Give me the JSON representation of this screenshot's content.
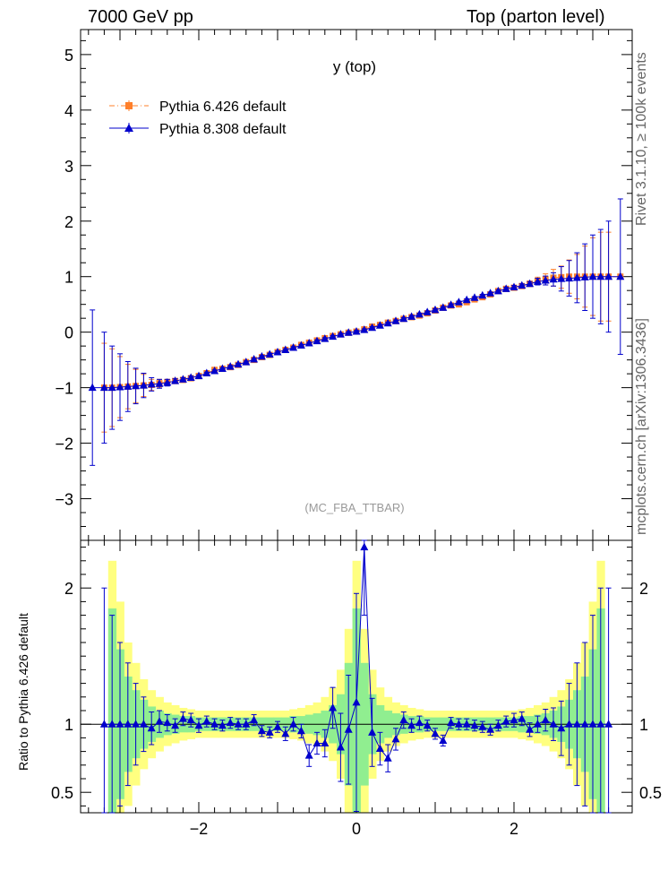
{
  "header": {
    "left": "7000 GeV pp",
    "right": "Top (parton level)"
  },
  "side_labels": {
    "rivet": "Rivet 3.1.10, ≥ 100k events",
    "mcplots": "mcplots.cern.ch [arXiv:1306.3436]"
  },
  "ratio_axis_label": "Ratio to Pythia 6.426 default",
  "colors": {
    "pythia6": "#ff7f2a",
    "pythia8": "#0000cc",
    "band_inner": "#90ee90",
    "band_outer": "#ffff80"
  },
  "chart_data": [
    {
      "type": "scatter",
      "title": "y (top)",
      "watermark": "(MC_FBA_TTBAR)",
      "xlim": [
        -3.5,
        3.5
      ],
      "ylim": [
        -3.75,
        5.45
      ],
      "yticks": [
        -3,
        -2,
        -1,
        0,
        1,
        2,
        3,
        4,
        5
      ],
      "ytick_labels": [
        "−3",
        "−2",
        "−1",
        "0",
        "1",
        "2",
        "3",
        "4",
        "5"
      ],
      "legend": [
        "Pythia 6.426 default",
        "Pythia 8.308 default"
      ],
      "series": [
        {
          "name": "Pythia 6.426 default",
          "x": [
            -3.2,
            -3.1,
            -3.0,
            -2.9,
            -2.8,
            -2.7,
            -2.6,
            -2.5,
            -2.4,
            -2.3,
            -2.2,
            -2.1,
            -2.0,
            -1.9,
            -1.8,
            -1.7,
            -1.6,
            -1.5,
            -1.4,
            -1.3,
            -1.2,
            -1.1,
            -1.0,
            -0.9,
            -0.8,
            -0.7,
            -0.6,
            -0.5,
            -0.4,
            -0.3,
            -0.2,
            -0.1,
            0.0,
            0.1,
            0.2,
            0.3,
            0.4,
            0.5,
            0.6,
            0.7,
            0.8,
            0.9,
            1.0,
            1.1,
            1.2,
            1.3,
            1.4,
            1.5,
            1.6,
            1.7,
            1.8,
            1.9,
            2.0,
            2.1,
            2.2,
            2.3,
            2.4,
            2.5,
            2.6,
            2.7,
            2.8,
            2.9,
            3.0,
            3.1,
            3.2,
            3.35
          ],
          "y": [
            -1.0,
            -1.0,
            -0.99,
            -0.98,
            -0.97,
            -0.96,
            -0.95,
            -0.92,
            -0.9,
            -0.88,
            -0.86,
            -0.83,
            -0.79,
            -0.74,
            -0.68,
            -0.66,
            -0.63,
            -0.59,
            -0.54,
            -0.5,
            -0.45,
            -0.41,
            -0.36,
            -0.32,
            -0.28,
            -0.23,
            -0.19,
            -0.15,
            -0.11,
            -0.07,
            -0.04,
            -0.01,
            0.01,
            0.05,
            0.1,
            0.13,
            0.17,
            0.2,
            0.24,
            0.27,
            0.3,
            0.34,
            0.39,
            0.44,
            0.48,
            0.5,
            0.54,
            0.59,
            0.63,
            0.68,
            0.74,
            0.78,
            0.8,
            0.83,
            0.87,
            0.92,
            0.95,
            0.98,
            0.99,
            1.0,
            1.0,
            1.0,
            1.0,
            1.0,
            1.0,
            1.0
          ],
          "err": [
            0.8,
            0.7,
            0.55,
            0.4,
            0.3,
            0.2,
            0.1,
            0.07,
            0.05,
            0.04,
            0.03,
            0.03,
            0.02,
            0.02,
            0.02,
            0.02,
            0.02,
            0.02,
            0.02,
            0.02,
            0.02,
            0.02,
            0.02,
            0.02,
            0.02,
            0.02,
            0.02,
            0.02,
            0.02,
            0.02,
            0.02,
            0.02,
            0.02,
            0.02,
            0.02,
            0.02,
            0.02,
            0.02,
            0.02,
            0.02,
            0.02,
            0.02,
            0.02,
            0.02,
            0.02,
            0.02,
            0.02,
            0.02,
            0.02,
            0.02,
            0.03,
            0.03,
            0.03,
            0.04,
            0.05,
            0.07,
            0.1,
            0.15,
            0.2,
            0.3,
            0.4,
            0.55,
            0.7,
            0.8,
            0.8,
            0.0
          ]
        },
        {
          "name": "Pythia 8.308 default",
          "x": [
            -3.35,
            -3.2,
            -3.1,
            -3.0,
            -2.9,
            -2.8,
            -2.7,
            -2.6,
            -2.5,
            -2.4,
            -2.3,
            -2.2,
            -2.1,
            -2.0,
            -1.9,
            -1.8,
            -1.7,
            -1.6,
            -1.5,
            -1.4,
            -1.3,
            -1.2,
            -1.1,
            -1.0,
            -0.9,
            -0.8,
            -0.7,
            -0.6,
            -0.5,
            -0.4,
            -0.3,
            -0.2,
            -0.1,
            0.0,
            0.1,
            0.2,
            0.3,
            0.4,
            0.5,
            0.6,
            0.7,
            0.8,
            0.9,
            1.0,
            1.1,
            1.2,
            1.3,
            1.4,
            1.5,
            1.6,
            1.7,
            1.8,
            1.9,
            2.0,
            2.1,
            2.2,
            2.3,
            2.4,
            2.5,
            2.6,
            2.7,
            2.8,
            2.9,
            3.0,
            3.1,
            3.2,
            3.35
          ],
          "y": [
            -1.0,
            -1.0,
            -1.0,
            -0.99,
            -0.98,
            -0.97,
            -0.96,
            -0.94,
            -0.93,
            -0.91,
            -0.88,
            -0.85,
            -0.82,
            -0.79,
            -0.74,
            -0.7,
            -0.66,
            -0.62,
            -0.58,
            -0.54,
            -0.49,
            -0.44,
            -0.4,
            -0.36,
            -0.32,
            -0.28,
            -0.24,
            -0.2,
            -0.16,
            -0.12,
            -0.08,
            -0.04,
            -0.01,
            0.01,
            0.04,
            0.08,
            0.12,
            0.16,
            0.2,
            0.24,
            0.28,
            0.32,
            0.36,
            0.4,
            0.44,
            0.49,
            0.54,
            0.58,
            0.62,
            0.66,
            0.7,
            0.74,
            0.78,
            0.81,
            0.84,
            0.87,
            0.91,
            0.93,
            0.95,
            0.96,
            0.97,
            0.98,
            0.99,
            1.0,
            1.0,
            1.0,
            1.0
          ],
          "err": [
            1.4,
            1.0,
            0.75,
            0.6,
            0.45,
            0.32,
            0.22,
            0.12,
            0.08,
            0.06,
            0.04,
            0.03,
            0.03,
            0.02,
            0.02,
            0.02,
            0.02,
            0.02,
            0.02,
            0.02,
            0.02,
            0.02,
            0.02,
            0.02,
            0.02,
            0.02,
            0.02,
            0.02,
            0.02,
            0.02,
            0.02,
            0.02,
            0.02,
            0.02,
            0.02,
            0.02,
            0.02,
            0.02,
            0.02,
            0.02,
            0.02,
            0.02,
            0.02,
            0.02,
            0.02,
            0.02,
            0.02,
            0.02,
            0.02,
            0.02,
            0.02,
            0.02,
            0.03,
            0.03,
            0.03,
            0.04,
            0.06,
            0.08,
            0.12,
            0.22,
            0.32,
            0.45,
            0.6,
            0.75,
            0.85,
            1.0,
            1.4
          ]
        }
      ]
    },
    {
      "type": "scatter",
      "title": "ratio",
      "xlim": [
        -3.5,
        3.5
      ],
      "ylim": [
        0.35,
        2.35
      ],
      "xticks": [
        -2,
        0,
        2
      ],
      "xtick_labels": [
        "−2",
        "0",
        "2"
      ],
      "yticks": [
        0.5,
        1,
        2
      ],
      "ytick_labels": [
        "0.5",
        "1",
        "2"
      ],
      "bands": {
        "x": [
          -3.1,
          -3.0,
          -2.9,
          -2.8,
          -2.7,
          -2.6,
          -2.5,
          -2.4,
          -2.3,
          -2.2,
          -2.1,
          -2.0,
          -1.9,
          -1.8,
          -1.7,
          -1.6,
          -1.5,
          -1.4,
          -1.3,
          -1.2,
          -1.1,
          -1.0,
          -0.9,
          -0.8,
          -0.7,
          -0.6,
          -0.5,
          -0.4,
          -0.3,
          -0.2,
          -0.1,
          0.0,
          0.1,
          0.2,
          0.3,
          0.4,
          0.5,
          0.6,
          0.7,
          0.8,
          0.9,
          1.0,
          1.1,
          1.2,
          1.3,
          1.4,
          1.5,
          1.6,
          1.7,
          1.8,
          1.9,
          2.0,
          2.1,
          2.2,
          2.3,
          2.4,
          2.5,
          2.6,
          2.7,
          2.8,
          2.9,
          3.0,
          3.1
        ],
        "inner": [
          0.85,
          0.55,
          0.35,
          0.25,
          0.18,
          0.13,
          0.1,
          0.08,
          0.07,
          0.06,
          0.06,
          0.05,
          0.05,
          0.05,
          0.05,
          0.05,
          0.05,
          0.05,
          0.05,
          0.05,
          0.05,
          0.05,
          0.05,
          0.06,
          0.06,
          0.07,
          0.08,
          0.1,
          0.14,
          0.22,
          0.45,
          0.85,
          0.45,
          0.22,
          0.14,
          0.1,
          0.08,
          0.07,
          0.06,
          0.06,
          0.05,
          0.05,
          0.05,
          0.05,
          0.05,
          0.05,
          0.05,
          0.05,
          0.05,
          0.05,
          0.05,
          0.05,
          0.06,
          0.06,
          0.07,
          0.08,
          0.1,
          0.13,
          0.18,
          0.25,
          0.35,
          0.55,
          0.85
        ],
        "outer": [
          1.2,
          0.9,
          0.6,
          0.45,
          0.33,
          0.25,
          0.2,
          0.16,
          0.14,
          0.12,
          0.11,
          0.1,
          0.1,
          0.1,
          0.1,
          0.1,
          0.1,
          0.1,
          0.1,
          0.1,
          0.1,
          0.1,
          0.1,
          0.11,
          0.12,
          0.14,
          0.16,
          0.2,
          0.27,
          0.4,
          0.7,
          1.2,
          0.7,
          0.4,
          0.27,
          0.2,
          0.16,
          0.14,
          0.12,
          0.11,
          0.1,
          0.1,
          0.1,
          0.1,
          0.1,
          0.1,
          0.1,
          0.1,
          0.1,
          0.1,
          0.1,
          0.1,
          0.11,
          0.12,
          0.14,
          0.16,
          0.2,
          0.25,
          0.33,
          0.45,
          0.6,
          0.9,
          1.2
        ]
      },
      "series": [
        {
          "name": "Pythia 8.308 default / Pythia 6.426 default",
          "x": [
            -3.2,
            -3.1,
            -3.0,
            -2.9,
            -2.8,
            -2.7,
            -2.6,
            -2.5,
            -2.4,
            -2.3,
            -2.2,
            -2.1,
            -2.0,
            -1.9,
            -1.8,
            -1.7,
            -1.6,
            -1.5,
            -1.4,
            -1.3,
            -1.2,
            -1.1,
            -1.0,
            -0.9,
            -0.8,
            -0.7,
            -0.6,
            -0.5,
            -0.4,
            -0.3,
            -0.2,
            -0.1,
            0.0,
            0.1,
            0.2,
            0.3,
            0.4,
            0.5,
            0.6,
            0.7,
            0.8,
            0.9,
            1.0,
            1.1,
            1.2,
            1.3,
            1.4,
            1.5,
            1.6,
            1.7,
            1.8,
            1.9,
            2.0,
            2.1,
            2.2,
            2.3,
            2.4,
            2.5,
            2.6,
            2.7,
            2.8,
            2.9,
            3.0,
            3.1,
            3.2
          ],
          "y": [
            1.0,
            1.0,
            1.0,
            1.0,
            1.0,
            1.0,
            0.97,
            1.02,
            1.01,
            0.99,
            1.04,
            1.03,
            0.99,
            1.02,
            1.0,
            0.99,
            1.01,
            1.0,
            1.0,
            1.03,
            0.95,
            0.94,
            0.98,
            0.93,
            1.0,
            0.95,
            0.77,
            0.86,
            0.86,
            1.12,
            0.83,
            0.96,
            1.16,
            2.3,
            0.94,
            0.82,
            0.75,
            0.89,
            1.03,
            0.99,
            1.01,
            0.99,
            0.93,
            0.88,
            1.01,
            1.0,
            1.0,
            0.99,
            0.98,
            0.96,
            0.99,
            1.02,
            1.03,
            1.04,
            0.96,
            1.0,
            1.03,
            1.0,
            0.97,
            1.0,
            1.0,
            1.0,
            1.0,
            1.0,
            1.0
          ],
          "err": [
            1.0,
            0.8,
            0.6,
            0.45,
            0.3,
            0.2,
            0.12,
            0.08,
            0.06,
            0.05,
            0.05,
            0.05,
            0.05,
            0.04,
            0.04,
            0.04,
            0.04,
            0.04,
            0.04,
            0.04,
            0.04,
            0.04,
            0.04,
            0.05,
            0.05,
            0.05,
            0.08,
            0.08,
            0.1,
            0.15,
            0.25,
            0.4,
            0.8,
            0.5,
            0.25,
            0.12,
            0.1,
            0.08,
            0.06,
            0.05,
            0.05,
            0.04,
            0.04,
            0.04,
            0.04,
            0.04,
            0.04,
            0.04,
            0.04,
            0.04,
            0.04,
            0.04,
            0.05,
            0.05,
            0.05,
            0.06,
            0.08,
            0.12,
            0.2,
            0.3,
            0.45,
            0.6,
            0.8,
            1.0,
            1.0
          ]
        }
      ]
    }
  ]
}
